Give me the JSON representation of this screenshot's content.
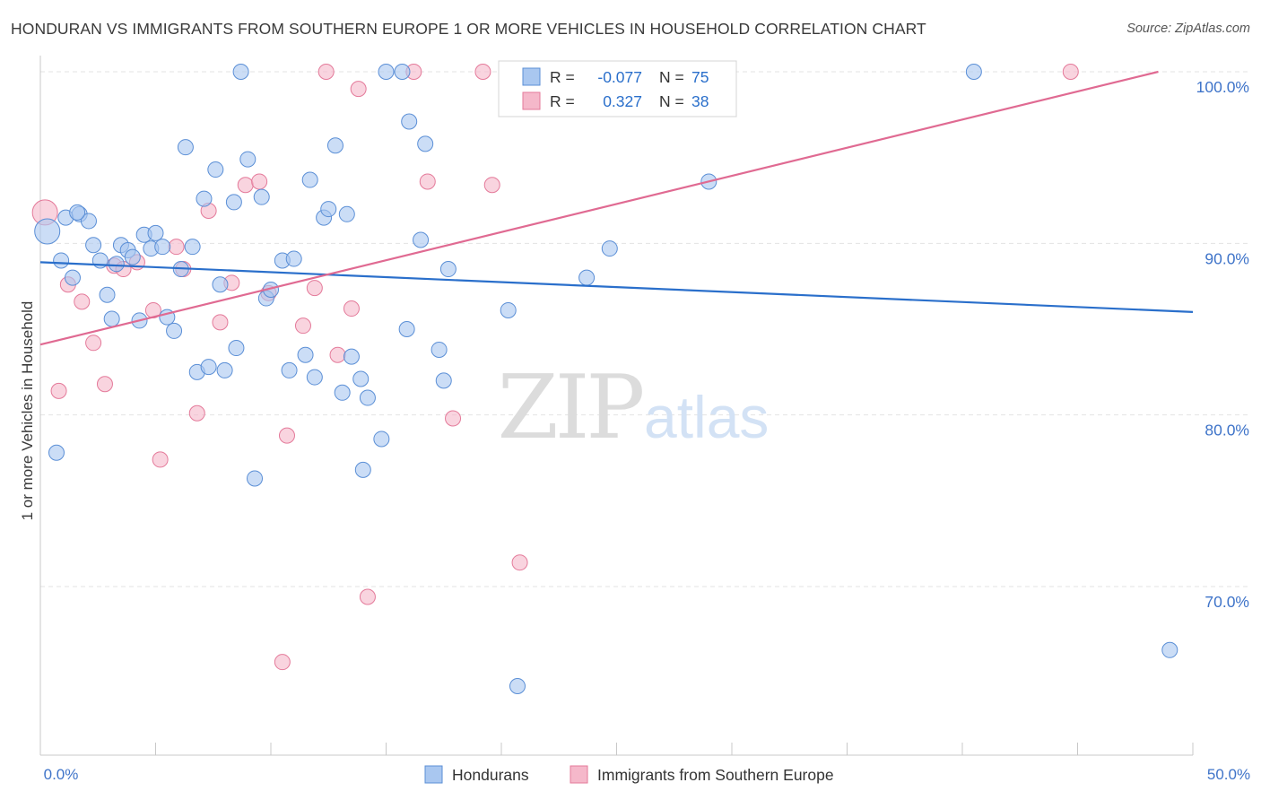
{
  "chart_data": {
    "type": "scatter",
    "title": "HONDURAN VS IMMIGRANTS FROM SOUTHERN EUROPE 1 OR MORE VEHICLES IN HOUSEHOLD CORRELATION CHART",
    "source": "Source: ZipAtlas.com",
    "watermark": {
      "zip": "ZIP",
      "atlas": "atlas"
    },
    "xlabel": "",
    "ylabel": "1 or more Vehicles in Household",
    "xlim": [
      0,
      50
    ],
    "ylim": [
      60.5,
      101.5
    ],
    "x_tick_labels": [
      "0.0%",
      "50.0%"
    ],
    "y_ticks": [
      {
        "value": 70,
        "label": "70.0%"
      },
      {
        "value": 80,
        "label": "80.0%"
      },
      {
        "value": 90,
        "label": "90.0%"
      },
      {
        "value": 100,
        "label": "100.0%"
      }
    ],
    "grid": true,
    "legend_position": "top-center",
    "stats_box": [
      {
        "r_label": "R =",
        "r_value": "-0.077",
        "n_label": "N =",
        "n_value": "75"
      },
      {
        "r_label": "R =",
        "r_value": "0.327",
        "n_label": "N =",
        "n_value": "38"
      }
    ],
    "colors": {
      "blue_fill": "#a9c7f0",
      "blue_stroke": "#5b8fd6",
      "blue_line": "#2a6fcb",
      "pink_fill": "#f5b8ca",
      "pink_stroke": "#e47a9a",
      "pink_line": "#e06a92",
      "tick_label": "#3f74c9",
      "grid": "#e3e3e3",
      "axis": "#c8c8c8"
    },
    "series": [
      {
        "name": "Hondurans",
        "color": "#a9c7f0",
        "trend": {
          "x": [
            0,
            50
          ],
          "y": [
            88.9,
            86.0
          ]
        },
        "points": [
          {
            "x": 0.3,
            "y": 90.7,
            "large": true
          },
          {
            "x": 0.7,
            "y": 77.8
          },
          {
            "x": 0.9,
            "y": 89.0
          },
          {
            "x": 1.1,
            "y": 91.5
          },
          {
            "x": 1.4,
            "y": 88.0
          },
          {
            "x": 1.7,
            "y": 91.7
          },
          {
            "x": 2.1,
            "y": 91.3
          },
          {
            "x": 2.3,
            "y": 89.9
          },
          {
            "x": 2.6,
            "y": 89.0
          },
          {
            "x": 2.9,
            "y": 87.0
          },
          {
            "x": 3.1,
            "y": 85.6
          },
          {
            "x": 3.3,
            "y": 88.8
          },
          {
            "x": 3.5,
            "y": 89.9
          },
          {
            "x": 3.8,
            "y": 89.6
          },
          {
            "x": 4.0,
            "y": 89.2
          },
          {
            "x": 4.3,
            "y": 85.5
          },
          {
            "x": 4.5,
            "y": 90.5
          },
          {
            "x": 4.8,
            "y": 89.7
          },
          {
            "x": 5.0,
            "y": 90.6
          },
          {
            "x": 5.3,
            "y": 89.8
          },
          {
            "x": 5.5,
            "y": 85.7
          },
          {
            "x": 5.8,
            "y": 84.9
          },
          {
            "x": 6.1,
            "y": 88.5
          },
          {
            "x": 6.3,
            "y": 95.6
          },
          {
            "x": 6.6,
            "y": 89.8
          },
          {
            "x": 6.8,
            "y": 82.5
          },
          {
            "x": 7.1,
            "y": 92.6
          },
          {
            "x": 7.3,
            "y": 82.8
          },
          {
            "x": 7.6,
            "y": 94.3
          },
          {
            "x": 7.8,
            "y": 87.6
          },
          {
            "x": 8.0,
            "y": 82.6
          },
          {
            "x": 8.4,
            "y": 92.4
          },
          {
            "x": 8.5,
            "y": 83.9
          },
          {
            "x": 8.7,
            "y": 100.0
          },
          {
            "x": 9.0,
            "y": 94.9
          },
          {
            "x": 9.3,
            "y": 76.3
          },
          {
            "x": 9.6,
            "y": 92.7
          },
          {
            "x": 9.8,
            "y": 86.8
          },
          {
            "x": 10.0,
            "y": 87.3
          },
          {
            "x": 10.5,
            "y": 89.0
          },
          {
            "x": 10.8,
            "y": 82.6
          },
          {
            "x": 11.0,
            "y": 89.1
          },
          {
            "x": 11.5,
            "y": 83.5
          },
          {
            "x": 11.7,
            "y": 93.7
          },
          {
            "x": 11.9,
            "y": 82.2
          },
          {
            "x": 12.3,
            "y": 91.5
          },
          {
            "x": 12.5,
            "y": 92.0
          },
          {
            "x": 12.8,
            "y": 95.7
          },
          {
            "x": 13.1,
            "y": 81.3
          },
          {
            "x": 13.3,
            "y": 91.7
          },
          {
            "x": 13.5,
            "y": 83.4
          },
          {
            "x": 13.9,
            "y": 82.1
          },
          {
            "x": 14.0,
            "y": 76.8
          },
          {
            "x": 14.2,
            "y": 81.0
          },
          {
            "x": 14.8,
            "y": 78.6
          },
          {
            "x": 15.0,
            "y": 100.0
          },
          {
            "x": 15.7,
            "y": 100.0
          },
          {
            "x": 15.9,
            "y": 85.0
          },
          {
            "x": 16.0,
            "y": 97.1
          },
          {
            "x": 16.5,
            "y": 90.2
          },
          {
            "x": 16.7,
            "y": 95.8
          },
          {
            "x": 17.3,
            "y": 83.8
          },
          {
            "x": 17.5,
            "y": 82.0
          },
          {
            "x": 17.7,
            "y": 88.5
          },
          {
            "x": 20.3,
            "y": 86.1
          },
          {
            "x": 20.7,
            "y": 64.2
          },
          {
            "x": 22.5,
            "y": 100.0
          },
          {
            "x": 23.7,
            "y": 88.0
          },
          {
            "x": 24.7,
            "y": 89.7
          },
          {
            "x": 26.0,
            "y": 100.0
          },
          {
            "x": 27.5,
            "y": 100.0
          },
          {
            "x": 29.0,
            "y": 93.6
          },
          {
            "x": 40.5,
            "y": 100.0
          },
          {
            "x": 49.0,
            "y": 66.3
          },
          {
            "x": 1.6,
            "y": 91.8
          }
        ]
      },
      {
        "name": "Immigrants from Southern Europe",
        "color": "#f5b8ca",
        "trend": {
          "x": [
            0,
            48.5
          ],
          "y": [
            84.1,
            100.0
          ]
        },
        "points": [
          {
            "x": 0.2,
            "y": 91.8,
            "large": true
          },
          {
            "x": 0.8,
            "y": 81.4
          },
          {
            "x": 1.2,
            "y": 87.6
          },
          {
            "x": 1.8,
            "y": 86.6
          },
          {
            "x": 2.3,
            "y": 84.2
          },
          {
            "x": 2.8,
            "y": 81.8
          },
          {
            "x": 3.2,
            "y": 88.7
          },
          {
            "x": 3.6,
            "y": 88.5
          },
          {
            "x": 4.2,
            "y": 88.9
          },
          {
            "x": 4.9,
            "y": 86.1
          },
          {
            "x": 5.2,
            "y": 77.4
          },
          {
            "x": 5.9,
            "y": 89.8
          },
          {
            "x": 6.2,
            "y": 88.5
          },
          {
            "x": 6.8,
            "y": 80.1
          },
          {
            "x": 7.3,
            "y": 91.9
          },
          {
            "x": 7.8,
            "y": 85.4
          },
          {
            "x": 8.3,
            "y": 87.7
          },
          {
            "x": 8.9,
            "y": 93.4
          },
          {
            "x": 9.5,
            "y": 93.6
          },
          {
            "x": 9.9,
            "y": 87.1
          },
          {
            "x": 10.5,
            "y": 65.6
          },
          {
            "x": 10.7,
            "y": 78.8
          },
          {
            "x": 11.4,
            "y": 85.2
          },
          {
            "x": 11.9,
            "y": 87.4
          },
          {
            "x": 12.4,
            "y": 100.0
          },
          {
            "x": 12.9,
            "y": 83.5
          },
          {
            "x": 13.5,
            "y": 86.2
          },
          {
            "x": 13.8,
            "y": 99.0
          },
          {
            "x": 14.2,
            "y": 69.4
          },
          {
            "x": 16.2,
            "y": 100.0
          },
          {
            "x": 16.8,
            "y": 93.6
          },
          {
            "x": 17.9,
            "y": 79.8
          },
          {
            "x": 19.2,
            "y": 100.0
          },
          {
            "x": 19.6,
            "y": 93.4
          },
          {
            "x": 20.8,
            "y": 71.4
          },
          {
            "x": 24.0,
            "y": 100.0
          },
          {
            "x": 26.5,
            "y": 100.0
          },
          {
            "x": 44.7,
            "y": 100.0
          }
        ]
      }
    ]
  }
}
